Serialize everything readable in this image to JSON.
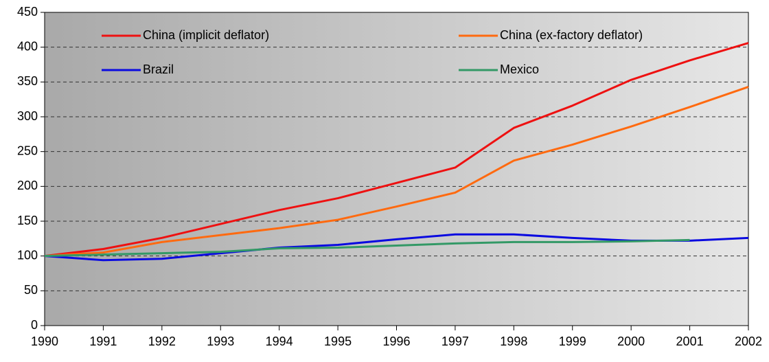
{
  "chart_data": {
    "type": "line",
    "x": [
      1990,
      1991,
      1992,
      1993,
      1994,
      1995,
      1996,
      1997,
      1998,
      1999,
      2000,
      2001,
      2002
    ],
    "series": [
      {
        "name": "China (implicit deflator)",
        "color": "#ee1111",
        "values": [
          100,
          110,
          126,
          146,
          166,
          183,
          205,
          227,
          284,
          316,
          353,
          381,
          406
        ]
      },
      {
        "name": "China (ex-factory deflator)",
        "color": "#ff6a10",
        "values": [
          100,
          105,
          120,
          130,
          140,
          152,
          171,
          191,
          237,
          260,
          286,
          314,
          343
        ]
      },
      {
        "name": "Brazil",
        "color": "#0a0ae0",
        "values": [
          100,
          94,
          96,
          104,
          112,
          116,
          124,
          131,
          131,
          126,
          122,
          122,
          126
        ]
      },
      {
        "name": "Mexico",
        "color": "#339966",
        "values": [
          100,
          102,
          104,
          106,
          111,
          112,
          115,
          118,
          120,
          120,
          121,
          123,
          null
        ]
      }
    ],
    "xlim": [
      1990,
      2002
    ],
    "xticks": [
      1990,
      1991,
      1992,
      1993,
      1994,
      1995,
      1996,
      1997,
      1998,
      1999,
      2000,
      2001,
      2002
    ],
    "ylim": [
      0,
      450
    ],
    "yticks": [
      0,
      50,
      100,
      150,
      200,
      250,
      300,
      350,
      400,
      450
    ],
    "grid": true,
    "legend": "top"
  }
}
